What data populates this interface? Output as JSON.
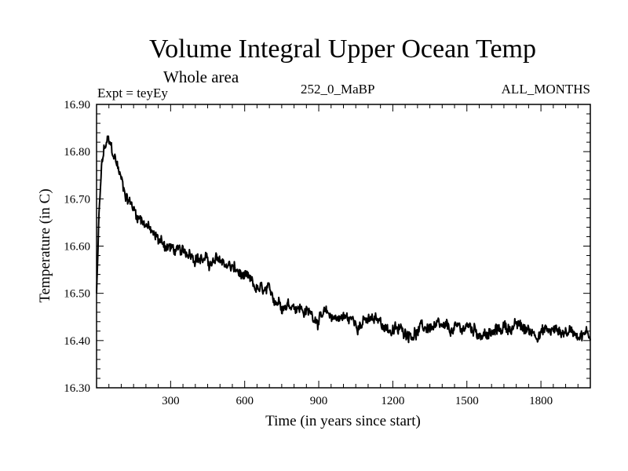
{
  "chart_data": {
    "type": "line",
    "title": "Volume Integral Upper Ocean Temp",
    "subtitle": "Whole area",
    "experiment": "Expt = teyEy",
    "run_id": "252_0_MaBP",
    "months": "ALL_MONTHS",
    "xlabel": "Time (in years since start)",
    "ylabel": "Temperature (in C)",
    "xlim": [
      0,
      2000
    ],
    "ylim": [
      16.3,
      16.9
    ],
    "x_ticks": [
      300,
      600,
      900,
      1200,
      1500,
      1800
    ],
    "x_tick_labels": [
      "300",
      "600",
      "900",
      "1200",
      "1500",
      "1800"
    ],
    "y_ticks": [
      16.3,
      16.4,
      16.5,
      16.6,
      16.7,
      16.8,
      16.9
    ],
    "y_tick_labels": [
      "16.30",
      "16.40",
      "16.50",
      "16.60",
      "16.70",
      "16.80",
      "16.90"
    ],
    "series": [
      {
        "name": "Volume integral upper ocean temperature",
        "x": [
          0,
          10,
          20,
          30,
          45,
          55,
          70,
          85,
          100,
          120,
          140,
          160,
          180,
          200,
          230,
          260,
          290,
          320,
          350,
          380,
          410,
          440,
          470,
          500,
          530,
          560,
          600,
          640,
          680,
          720,
          760,
          800,
          850,
          900,
          950,
          1000,
          1050,
          1100,
          1150,
          1200,
          1250,
          1300,
          1350,
          1400,
          1450,
          1500,
          1550,
          1600,
          1650,
          1700,
          1750,
          1800,
          1850,
          1900,
          1950,
          2000
        ],
        "y": [
          16.5,
          16.66,
          16.76,
          16.8,
          16.82,
          16.81,
          16.79,
          16.77,
          16.74,
          16.71,
          16.69,
          16.67,
          16.66,
          16.65,
          16.62,
          16.61,
          16.6,
          16.59,
          16.58,
          16.59,
          16.58,
          16.57,
          16.56,
          16.57,
          16.56,
          16.55,
          16.53,
          16.51,
          16.5,
          16.49,
          16.48,
          16.48,
          16.46,
          16.45,
          16.45,
          16.45,
          16.44,
          16.44,
          16.44,
          16.42,
          16.42,
          16.42,
          16.43,
          16.42,
          16.42,
          16.43,
          16.42,
          16.41,
          16.43,
          16.43,
          16.42,
          16.42,
          16.42,
          16.42,
          16.42,
          16.41
        ]
      }
    ]
  }
}
